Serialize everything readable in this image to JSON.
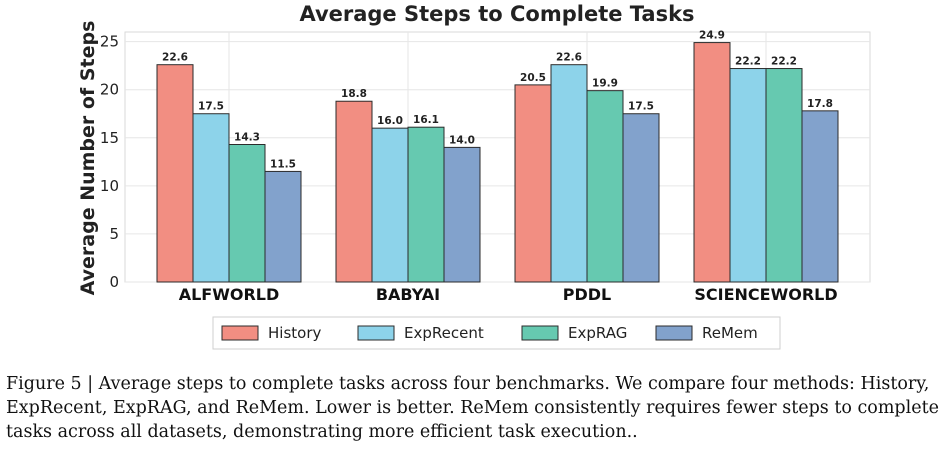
{
  "chart_data": {
    "type": "bar",
    "title": "Average Steps to Complete Tasks",
    "xlabel": "",
    "ylabel": "Average Number of Steps",
    "categories": [
      "ALFWORLD",
      "BABYAI",
      "PDDL",
      "SCIENCEWORLD"
    ],
    "series": [
      {
        "name": "History",
        "color": "#F28E82",
        "values": [
          22.6,
          18.8,
          20.5,
          24.9
        ]
      },
      {
        "name": "ExpRecent",
        "color": "#8DD3EA",
        "values": [
          17.5,
          16.0,
          22.6,
          22.2
        ]
      },
      {
        "name": "ExpRAG",
        "color": "#66C9B0",
        "values": [
          14.3,
          16.1,
          19.9,
          22.2
        ]
      },
      {
        "name": "ReMem",
        "color": "#82A2CC",
        "values": [
          11.5,
          14.0,
          17.5,
          17.8
        ]
      }
    ],
    "ylim": [
      0,
      26
    ],
    "yticks": [
      0,
      5,
      10,
      15,
      20,
      25
    ],
    "grid": true,
    "legend_position": "bottom-center",
    "value_labels": true
  },
  "caption": "Figure 5 | Average steps to complete tasks across four benchmarks. We compare four methods: History, ExpRecent, ExpRAG, and ReMem. Lower is better. ReMem consistently requires fewer steps to complete tasks across all datasets, demonstrating more efficient task execution.."
}
